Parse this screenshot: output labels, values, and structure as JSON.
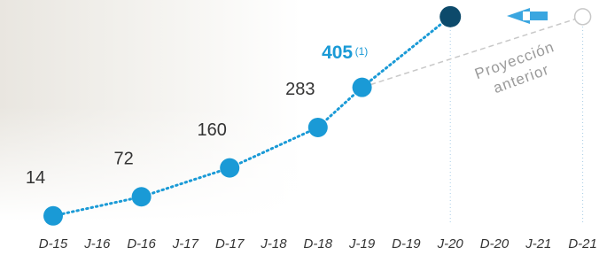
{
  "chart_data": {
    "type": "line",
    "categories": [
      "D-15",
      "J-16",
      "D-16",
      "J-17",
      "D-17",
      "J-18",
      "D-18",
      "J-19",
      "D-19",
      "J-20",
      "D-20",
      "J-21",
      "D-21"
    ],
    "ylim": [
      0,
      660
    ],
    "grid": false,
    "series": [
      {
        "color": "#1a9ad6",
        "x": [
          "D-15",
          "D-16",
          "D-17",
          "D-18",
          "J-19",
          "J-20"
        ],
        "values": [
          14,
          72,
          160,
          283,
          405,
          620
        ],
        "value_labels": [
          "14",
          "72",
          "160",
          "283",
          "405",
          null
        ]
      },
      {
        "name": "Proyección anterior",
        "color": "#c8c8c8",
        "x": [
          "J-19",
          "D-21"
        ],
        "values": [
          405,
          620
        ]
      }
    ],
    "annotations": [
      {
        "text": "(1)"
      }
    ],
    "guides": [
      "J-20",
      "D-21"
    ]
  }
}
